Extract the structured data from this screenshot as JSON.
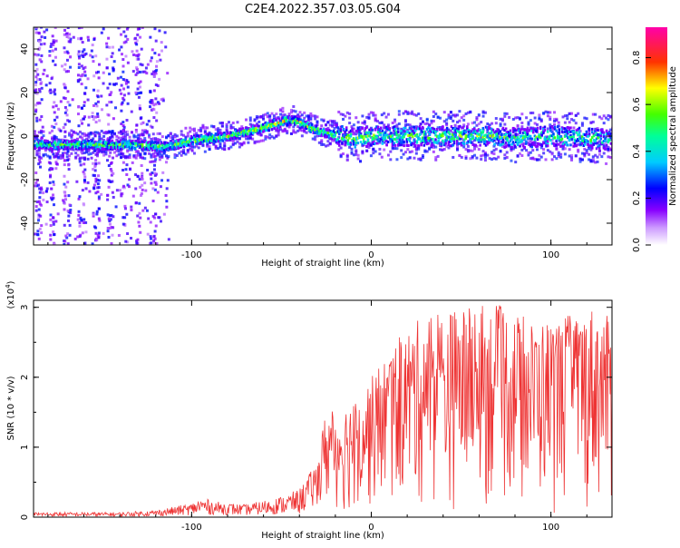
{
  "title": "C2E4.2022.357.03.05.G04",
  "chart_data": [
    {
      "type": "heatmap",
      "xlabel": "Height of straight line (km)",
      "ylabel": "Frequency (Hz)",
      "xlim": [
        -188,
        134
      ],
      "ylim": [
        -50,
        50
      ],
      "xticks": [
        -100,
        0,
        100
      ],
      "yticks": [
        -40,
        -20,
        0,
        20,
        40
      ],
      "colorbar": {
        "label": "Normalized spectral amplitude",
        "range": [
          0.0,
          0.93
        ],
        "ticks": [
          0.0,
          0.2,
          0.4,
          0.6,
          0.8
        ],
        "colormap": [
          "#ffffff",
          "#9900ff",
          "#0000ff",
          "#00ffff",
          "#00ff00",
          "#ffff00",
          "#ff0000",
          "#ff0099"
        ]
      },
      "ridge": {
        "x": [
          -188,
          -160,
          -130,
          -115,
          -100,
          -80,
          -60,
          -48,
          -42,
          -35,
          -25,
          -10,
          0,
          20,
          40,
          60,
          80,
          100,
          120,
          134
        ],
        "frequency": [
          -4,
          -4,
          -4,
          -5,
          -2,
          0,
          4,
          7,
          7,
          4,
          1,
          -1,
          0,
          0,
          0,
          0,
          -1,
          0,
          -1,
          -2
        ],
        "amplitude": [
          0.45,
          0.5,
          0.5,
          0.55,
          0.55,
          0.55,
          0.6,
          0.6,
          0.6,
          0.55,
          0.5,
          0.5,
          0.5,
          0.5,
          0.5,
          0.5,
          0.45,
          0.45,
          0.45,
          0.45
        ]
      }
    },
    {
      "type": "line",
      "xlabel": "Height of straight line (km)",
      "ylabel": "SNR (10 * v/v)",
      "y_multiplier": "(x10",
      "y_multiplier_exp": "4",
      "y_multiplier_close": ")",
      "xlim": [
        -188,
        134
      ],
      "ylim": [
        0,
        3.1
      ],
      "xticks": [
        -100,
        0,
        100
      ],
      "yticks": [
        0,
        1,
        2,
        3
      ],
      "color": "#ee3333",
      "envelope": {
        "x": [
          -188,
          -140,
          -120,
          -110,
          -100,
          -95,
          -85,
          -70,
          -50,
          -40,
          -30,
          -25,
          -20,
          -10,
          0,
          10,
          20,
          30,
          50,
          70,
          90,
          110,
          125,
          134
        ],
        "y_max": [
          0.07,
          0.07,
          0.1,
          0.15,
          0.2,
          0.28,
          0.22,
          0.18,
          0.3,
          0.4,
          0.8,
          1.6,
          1.5,
          1.7,
          2.0,
          2.4,
          2.7,
          2.9,
          3.0,
          3.05,
          2.8,
          2.9,
          3.05,
          2.8
        ]
      }
    }
  ]
}
